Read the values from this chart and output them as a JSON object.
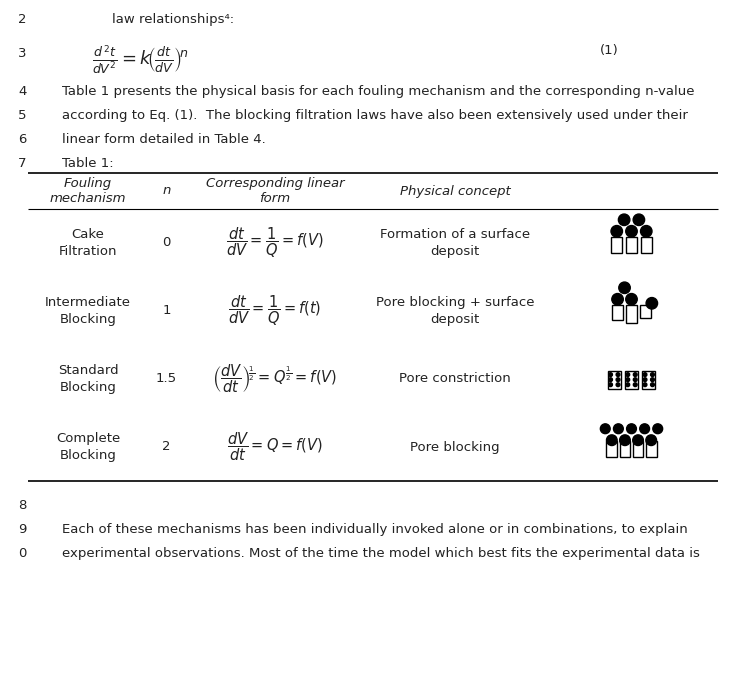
{
  "line2": "law relationships⁴:",
  "eq_number": "(1)",
  "line4": "Table 1 presents the physical basis for each fouling mechanism and the corresponding n-value",
  "line5": "according to Eq. (1).  The blocking filtration laws have also been extensively used under their",
  "line6": "linear form detailed in Table 4.",
  "line7": "Table 1:",
  "line9": "Each of these mechanisms has been individually invoked alone or in combinations, to explain",
  "line10": "experimental observations. Most of the time the model which best fits the experimental data is",
  "rows": [
    {
      "mechanism": "Cake\nFiltration",
      "n": "0",
      "icon": "cake"
    },
    {
      "mechanism": "Intermediate\nBlocking",
      "n": "1",
      "icon": "intermediate"
    },
    {
      "mechanism": "Standard\nBlocking",
      "n": "1.5",
      "icon": "standard"
    },
    {
      "mechanism": "Complete\nBlocking",
      "n": "2",
      "icon": "complete"
    }
  ],
  "row_concepts": [
    "Formation of a surface\ndeposit",
    "Pore blocking + surface\ndeposit",
    "Pore constriction",
    "Pore blocking"
  ],
  "bg_color": "#ffffff",
  "text_color": "#222222"
}
